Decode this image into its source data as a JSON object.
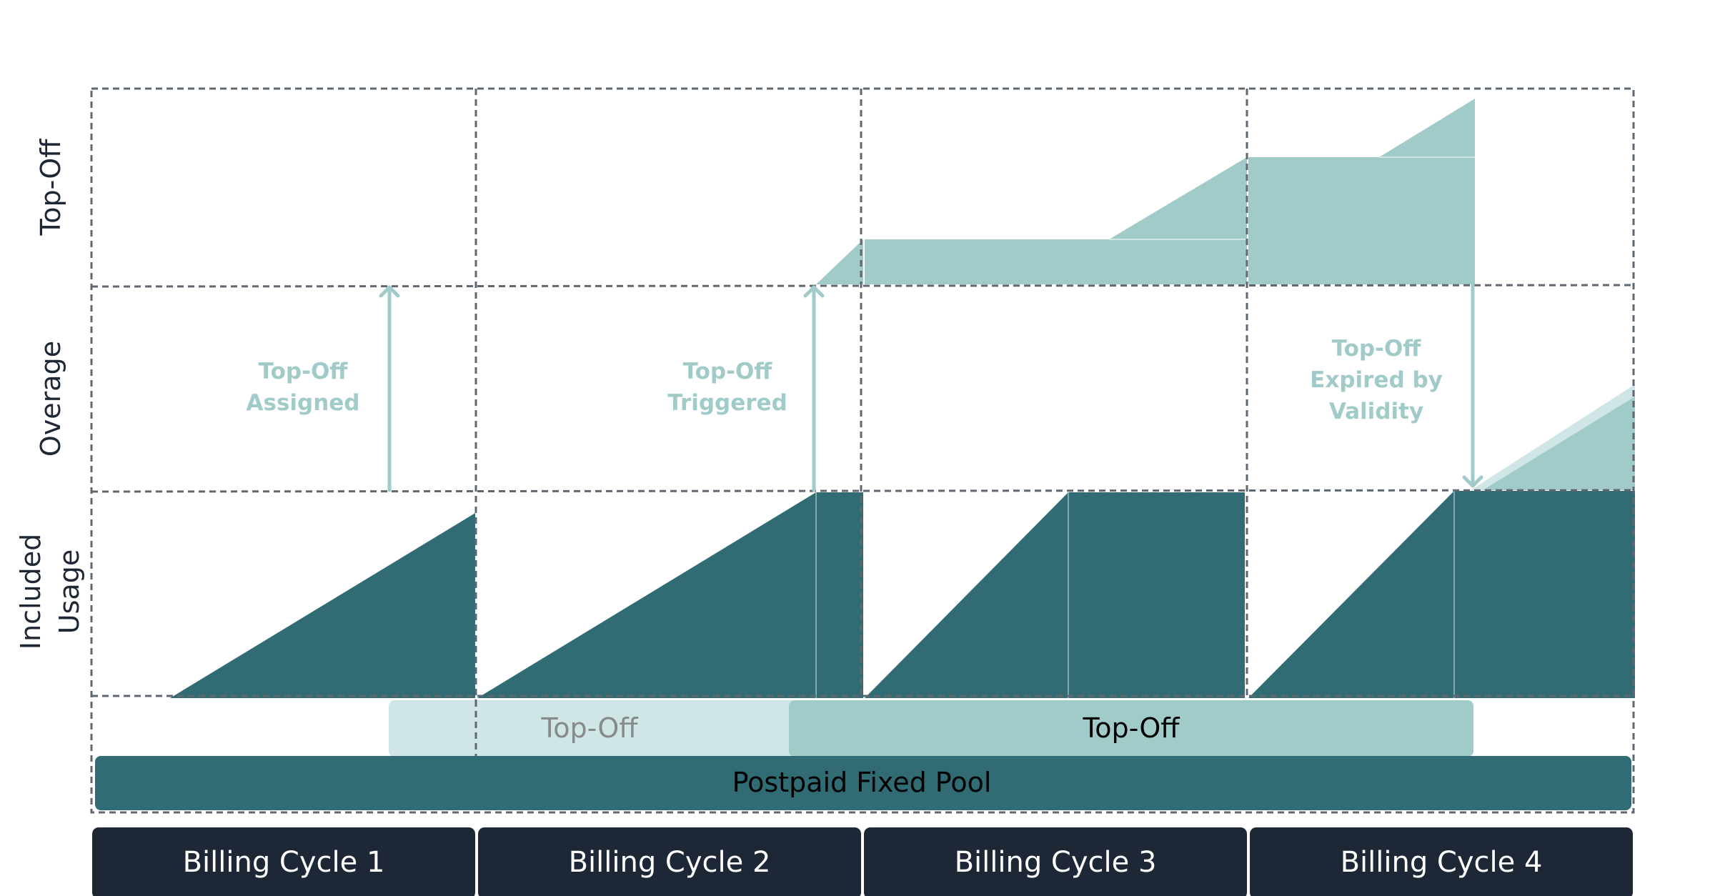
{
  "colors": {
    "dark_teal": "#316c74",
    "light_teal": "#a1cbc9",
    "pale_teal": "#d0e6e6",
    "navy": "#1d2736",
    "grid": "#5f6870",
    "annotation_text": "#a1cbc9"
  },
  "row_labels": {
    "top_off": "Top-Off",
    "overage": "Overage",
    "included_line1": "Included",
    "included_line2": "Usage"
  },
  "annotations": {
    "assigned_line1": "Top-Off",
    "assigned_line2": "Assigned",
    "triggered_line1": "Top-Off",
    "triggered_line2": "Triggered",
    "expired_line1": "Top-Off",
    "expired_line2": "Expired by",
    "expired_line3": "Validity"
  },
  "bars": {
    "topoff_expired": "Top-Off",
    "topoff_active": "Top-Off",
    "pool": "Postpaid Fixed Pool"
  },
  "billing_cycles": [
    "Billing Cycle 1",
    "Billing Cycle 2",
    "Billing Cycle 3",
    "Billing Cycle 4"
  ]
}
